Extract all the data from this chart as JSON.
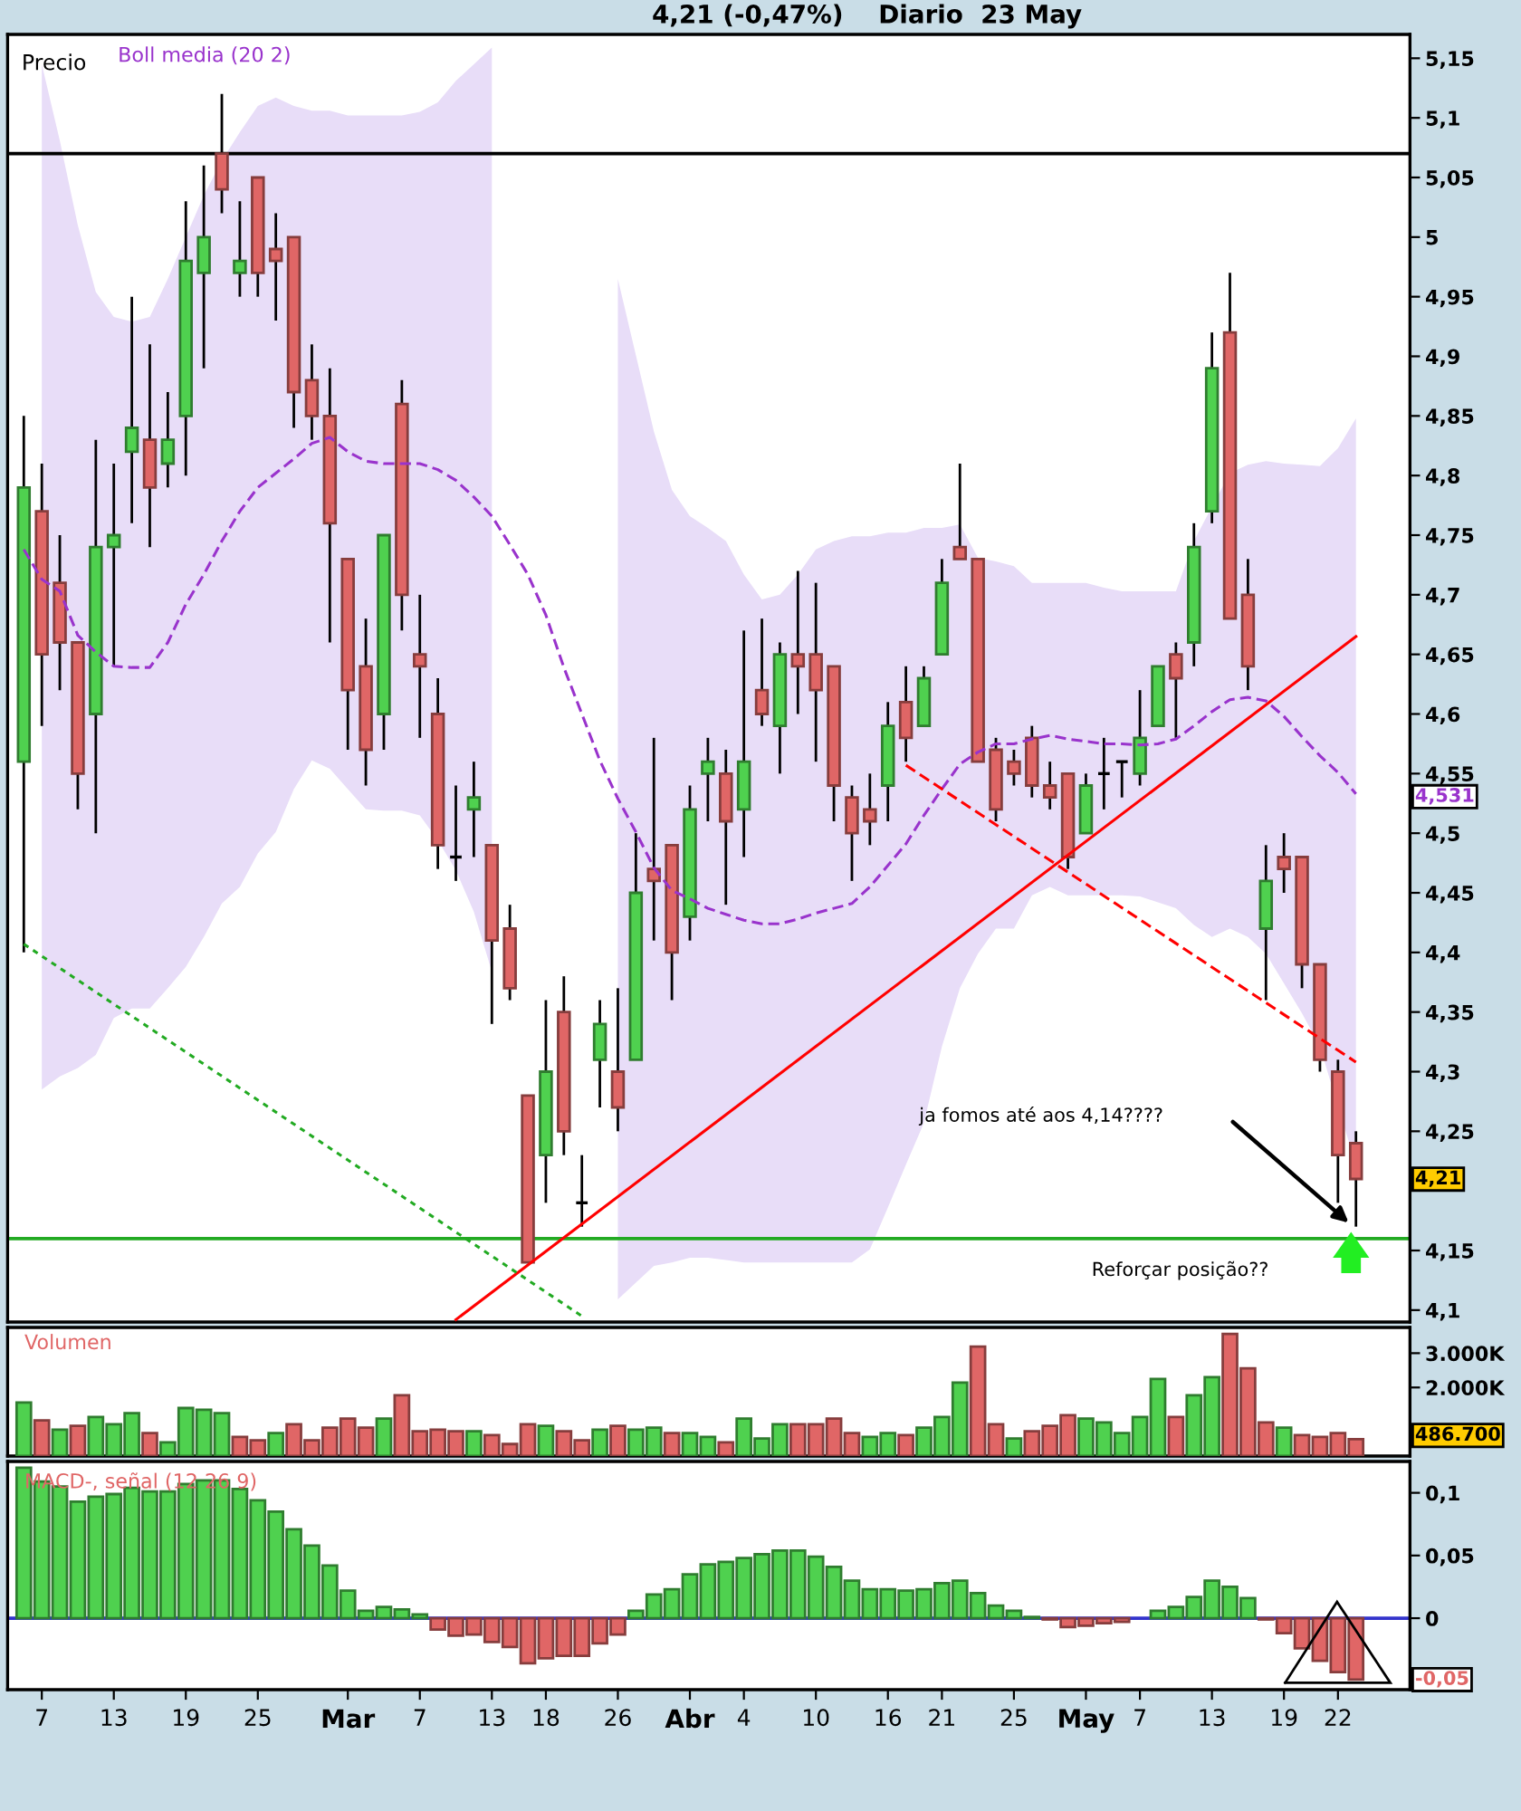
{
  "chart_data": [
    {
      "type": "candlestick",
      "title": "4,21 (-0,47%)    Diario  23 May",
      "categories": [
        null,
        null,
        null,
        null,
        null,
        null,
        null,
        null,
        null,
        null,
        null,
        null,
        null,
        null,
        null,
        null,
        null,
        null,
        null,
        null,
        null,
        null,
        null,
        null,
        null,
        null,
        null,
        null,
        null,
        null,
        null,
        null,
        null,
        null,
        null,
        null,
        null,
        null,
        null,
        null,
        null,
        null,
        null,
        null,
        null,
        null,
        null,
        null,
        null,
        null,
        null,
        null,
        null,
        null,
        null,
        null,
        null,
        null,
        null,
        null,
        null,
        null,
        null,
        null,
        null,
        null,
        null,
        null,
        null,
        null,
        null,
        null,
        null,
        null,
        null
      ],
      "series": [
        {
          "type": "candlestick",
          "color": "#000000",
          "ohlc": [
            [
              4.56,
              4.85,
              4.4,
              4.79
            ],
            [
              4.77,
              4.81,
              4.59,
              4.65
            ],
            [
              4.71,
              4.75,
              4.62,
              4.66
            ],
            [
              4.66,
              4.66,
              4.52,
              4.55
            ],
            [
              4.6,
              4.83,
              4.5,
              4.74
            ],
            [
              4.74,
              4.81,
              4.64,
              4.75
            ],
            [
              4.82,
              4.95,
              4.76,
              4.84
            ],
            [
              4.83,
              4.91,
              4.74,
              4.79
            ],
            [
              4.81,
              4.87,
              4.79,
              4.83
            ],
            [
              4.85,
              5.03,
              4.8,
              4.98
            ],
            [
              4.97,
              5.06,
              4.89,
              5.0
            ],
            [
              5.07,
              5.12,
              5.02,
              5.04
            ],
            [
              4.97,
              5.03,
              4.95,
              4.98
            ],
            [
              5.05,
              5.05,
              4.95,
              4.97
            ],
            [
              4.99,
              5.02,
              4.93,
              4.98
            ],
            [
              5.0,
              5.0,
              4.84,
              4.87
            ],
            [
              4.88,
              4.91,
              4.83,
              4.85
            ],
            [
              4.85,
              4.89,
              4.66,
              4.76
            ],
            [
              4.73,
              4.73,
              4.57,
              4.62
            ],
            [
              4.64,
              4.68,
              4.54,
              4.57
            ],
            [
              4.6,
              4.75,
              4.57,
              4.75
            ],
            [
              4.86,
              4.88,
              4.67,
              4.7
            ],
            [
              4.65,
              4.7,
              4.58,
              4.64
            ],
            [
              4.6,
              4.63,
              4.47,
              4.49
            ],
            [
              4.48,
              4.54,
              4.46,
              4.48
            ],
            [
              4.52,
              4.56,
              4.48,
              4.53
            ],
            [
              4.49,
              4.49,
              4.34,
              4.41
            ],
            [
              4.42,
              4.44,
              4.36,
              4.37
            ],
            [
              4.28,
              4.28,
              4.14,
              4.14
            ],
            [
              4.23,
              4.36,
              4.19,
              4.3
            ],
            [
              4.35,
              4.38,
              4.23,
              4.25
            ],
            [
              4.19,
              4.23,
              4.17,
              4.19
            ],
            [
              4.31,
              4.36,
              4.27,
              4.34
            ],
            [
              4.3,
              4.37,
              4.25,
              4.27
            ],
            [
              4.31,
              4.5,
              4.31,
              4.45
            ],
            [
              4.47,
              4.58,
              4.41,
              4.46
            ],
            [
              4.49,
              4.49,
              4.36,
              4.4
            ],
            [
              4.43,
              4.54,
              4.41,
              4.52
            ],
            [
              4.55,
              4.58,
              4.51,
              4.56
            ],
            [
              4.55,
              4.57,
              4.44,
              4.51
            ],
            [
              4.52,
              4.67,
              4.48,
              4.56
            ],
            [
              4.62,
              4.68,
              4.59,
              4.6
            ],
            [
              4.59,
              4.66,
              4.55,
              4.65
            ],
            [
              4.65,
              4.72,
              4.6,
              4.64
            ],
            [
              4.65,
              4.71,
              4.56,
              4.62
            ],
            [
              4.64,
              4.64,
              4.51,
              4.54
            ],
            [
              4.53,
              4.54,
              4.46,
              4.5
            ],
            [
              4.52,
              4.55,
              4.49,
              4.51
            ],
            [
              4.54,
              4.61,
              4.51,
              4.59
            ],
            [
              4.61,
              4.64,
              4.56,
              4.58
            ],
            [
              4.59,
              4.64,
              4.59,
              4.63
            ],
            [
              4.65,
              4.73,
              4.65,
              4.71
            ],
            [
              4.74,
              4.81,
              4.73,
              4.73
            ],
            [
              4.73,
              4.73,
              4.56,
              4.56
            ],
            [
              4.57,
              4.58,
              4.51,
              4.52
            ],
            [
              4.56,
              4.57,
              4.54,
              4.55
            ],
            [
              4.58,
              4.59,
              4.53,
              4.54
            ],
            [
              4.54,
              4.56,
              4.52,
              4.53
            ],
            [
              4.55,
              4.55,
              4.47,
              4.48
            ],
            [
              4.5,
              4.55,
              4.5,
              4.54
            ],
            [
              4.55,
              4.58,
              4.52,
              4.55
            ],
            [
              4.56,
              4.56,
              4.53,
              4.56
            ],
            [
              4.55,
              4.62,
              4.54,
              4.58
            ],
            [
              4.59,
              4.64,
              4.59,
              4.64
            ],
            [
              4.65,
              4.66,
              4.58,
              4.63
            ],
            [
              4.66,
              4.76,
              4.64,
              4.74
            ],
            [
              4.77,
              4.92,
              4.76,
              4.89
            ],
            [
              4.92,
              4.97,
              4.68,
              4.68
            ],
            [
              4.7,
              4.73,
              4.62,
              4.64
            ],
            [
              4.42,
              4.49,
              4.36,
              4.46
            ],
            [
              4.48,
              4.5,
              4.45,
              4.47
            ],
            [
              4.48,
              4.48,
              4.37,
              4.39
            ],
            [
              4.39,
              4.39,
              4.3,
              4.31
            ],
            [
              4.3,
              4.31,
              4.19,
              4.23
            ],
            [
              4.24,
              4.25,
              4.17,
              4.21
            ]
          ],
          "colors": [
            "#4fd14f",
            "#e06666",
            "#e06666",
            "#e06666",
            "#4fd14f",
            "#4fd14f",
            "#4fd14f",
            "#e06666",
            "#4fd14f",
            "#4fd14f",
            "#4fd14f",
            "#e06666",
            "#4fd14f",
            "#e06666",
            "#e06666",
            "#e06666",
            "#e06666",
            "#e06666",
            "#e06666",
            "#e06666",
            "#4fd14f",
            "#e06666",
            "#e06666",
            "#e06666",
            "#000000",
            "#4fd14f",
            "#e06666",
            "#e06666",
            "#e06666",
            "#4fd14f",
            "#e06666",
            "#000000",
            "#4fd14f",
            "#e06666",
            "#4fd14f",
            "#e06666",
            "#e06666",
            "#4fd14f",
            "#4fd14f",
            "#e06666",
            "#4fd14f",
            "#e06666",
            "#4fd14f",
            "#e06666",
            "#e06666",
            "#e06666",
            "#e06666",
            "#e06666",
            "#4fd14f",
            "#e06666",
            "#4fd14f",
            "#4fd14f",
            "#e06666",
            "#e06666",
            "#e06666",
            "#e06666",
            "#e06666",
            "#e06666",
            "#e06666",
            "#4fd14f",
            "#000000",
            "#000000",
            "#4fd14f",
            "#4fd14f",
            "#e06666",
            "#4fd14f",
            "#4fd14f",
            "#e06666",
            "#e06666",
            "#4fd14f",
            "#e06666",
            "#e06666",
            "#e06666",
            "#e06666",
            "#e06666"
          ]
        },
        {
          "type": "line",
          "name": "Boll media (20 2)",
          "color": "#9933cc",
          "line_style": "dashed",
          "values": [
            4.738,
            4.713,
            4.703,
            4.666,
            4.652,
            4.64,
            4.639,
            4.639,
            4.66,
            4.692,
            4.717,
            4.745,
            4.77,
            4.79,
            4.802,
            4.814,
            4.827,
            4.832,
            4.82,
            4.812,
            4.81,
            4.81,
            4.81,
            4.805,
            4.796,
            4.782,
            4.766,
            4.742,
            4.717,
            4.683,
            4.639,
            4.6,
            4.561,
            4.529,
            4.501,
            4.471,
            4.452,
            4.445,
            4.437,
            4.432,
            4.427,
            4.424,
            4.424,
            4.428,
            4.433,
            4.437,
            4.441,
            4.455,
            4.473,
            4.491,
            4.515,
            4.537,
            4.558,
            4.568,
            4.575,
            4.575,
            4.579,
            4.582,
            4.579,
            4.577,
            4.575,
            4.575,
            4.574,
            4.575,
            4.579,
            4.59,
            4.602,
            4.612,
            4.614,
            4.611,
            4.598,
            4.581,
            4.565,
            4.551,
            4.533
          ],
          "lower": [
            null,
            4.285,
            4.296,
            4.303,
            4.314,
            4.345,
            4.353,
            4.353,
            4.37,
            4.388,
            4.413,
            4.441,
            4.455,
            4.483,
            4.501,
            4.537,
            4.561,
            4.554,
            4.537,
            4.52,
            4.519,
            4.519,
            4.515,
            4.494,
            4.469,
            4.434,
            4.384,
            null,
            null,
            null,
            null,
            null,
            null,
            4.109,
            4.123,
            4.137,
            4.14,
            4.144,
            4.144,
            4.142,
            4.14,
            4.14,
            4.14,
            4.14,
            4.14,
            4.14,
            4.14,
            4.151,
            4.186,
            4.222,
            4.257,
            4.321,
            4.37,
            4.399,
            4.42,
            4.42,
            4.448,
            4.455,
            4.448,
            4.448,
            4.448,
            4.448,
            4.447,
            4.442,
            4.437,
            4.423,
            4.413,
            4.42,
            4.413,
            4.399,
            4.374,
            4.349,
            4.321,
            4.271,
            4.222
          ],
          "upper": [
            null,
            5.145,
            5.081,
            5.01,
            4.954,
            4.933,
            4.929,
            4.933,
            4.965,
            5.0,
            5.035,
            5.064,
            5.088,
            5.11,
            5.117,
            5.11,
            5.106,
            5.106,
            5.102,
            5.102,
            5.102,
            5.102,
            5.105,
            5.113,
            5.131,
            5.145,
            5.159,
            null,
            null,
            null,
            null,
            null,
            null,
            4.965,
            4.901,
            4.837,
            4.788,
            4.766,
            4.756,
            4.745,
            4.717,
            4.696,
            4.7,
            4.717,
            4.738,
            4.745,
            4.749,
            4.749,
            4.752,
            4.752,
            4.756,
            4.756,
            4.759,
            4.731,
            4.728,
            4.724,
            4.71,
            4.71,
            4.71,
            4.71,
            4.706,
            4.703,
            4.703,
            4.703,
            4.703,
            4.745,
            4.774,
            4.802,
            4.809,
            4.812,
            4.81,
            4.809,
            4.808,
            4.823,
            4.848
          ]
        },
        {
          "type": "line",
          "color": "#ff0000",
          "line_style": "solid",
          "values": [
            null,
            null,
            null,
            null,
            null,
            null,
            null,
            null,
            null,
            null,
            null,
            null,
            null,
            null,
            null,
            null,
            null,
            null,
            null,
            null,
            null,
            null,
            null,
            null,
            4.092,
            null,
            null,
            null,
            null,
            null,
            null,
            null,
            null,
            null,
            null,
            null,
            null,
            null,
            null,
            null,
            null,
            null,
            null,
            null,
            null,
            null,
            null,
            null,
            null,
            null,
            null,
            null,
            null,
            null,
            null,
            null,
            null,
            null,
            null,
            null,
            null,
            null,
            null,
            null,
            null,
            null,
            null,
            null,
            null,
            null,
            null,
            null,
            null,
            null,
            4.665
          ]
        },
        {
          "type": "line",
          "color": "#ff0000",
          "line_style": "dashed",
          "values": [
            null,
            null,
            null,
            null,
            null,
            null,
            null,
            null,
            null,
            null,
            null,
            null,
            null,
            null,
            null,
            null,
            null,
            null,
            null,
            null,
            null,
            null,
            null,
            null,
            null,
            null,
            null,
            null,
            null,
            null,
            null,
            null,
            null,
            null,
            null,
            null,
            null,
            null,
            null,
            null,
            null,
            null,
            null,
            null,
            null,
            null,
            null,
            null,
            null,
            4.557,
            null,
            null,
            null,
            null,
            null,
            null,
            null,
            null,
            null,
            null,
            null,
            null,
            null,
            null,
            null,
            null,
            null,
            null,
            null,
            null,
            null,
            null,
            null,
            null,
            4.308
          ]
        },
        {
          "type": "line",
          "color": "#22aa22",
          "line_style": "dotted",
          "values": [
            4.407,
            null,
            null,
            null,
            null,
            null,
            null,
            null,
            null,
            null,
            null,
            null,
            null,
            null,
            null,
            null,
            null,
            null,
            null,
            null,
            null,
            null,
            null,
            null,
            null,
            null,
            null,
            null,
            null,
            null,
            null,
            4.095,
            null,
            null,
            null,
            null,
            null,
            null,
            null,
            null,
            null,
            null,
            null,
            null,
            null,
            null,
            null,
            null,
            null,
            null,
            null,
            null,
            null,
            null,
            null,
            null,
            null,
            null,
            null,
            null,
            null,
            null,
            null,
            null,
            null,
            null,
            null,
            null,
            null,
            null,
            null,
            null,
            null,
            null,
            null
          ]
        }
      ],
      "ylim": [
        4.09,
        5.17
      ],
      "yticks": [
        {
          "value": 4.1,
          "label": "4,1"
        },
        {
          "value": 4.15,
          "label": "4,15"
        },
        {
          "value": 4.25,
          "label": "4,25"
        },
        {
          "value": 4.3,
          "label": "4,3"
        },
        {
          "value": 4.35,
          "label": "4,35"
        },
        {
          "value": 4.4,
          "label": "4,4"
        },
        {
          "value": 4.45,
          "label": "4,45"
        },
        {
          "value": 4.5,
          "label": "4,5"
        },
        {
          "value": 4.55,
          "label": "4,55"
        },
        {
          "value": 4.6,
          "label": "4,6"
        },
        {
          "value": 4.65,
          "label": "4,65"
        },
        {
          "value": 4.7,
          "label": "4,7"
        },
        {
          "value": 4.75,
          "label": "4,75"
        },
        {
          "value": 4.8,
          "label": "4,8"
        },
        {
          "value": 4.85,
          "label": "4,85"
        },
        {
          "value": 4.9,
          "label": "4,9"
        },
        {
          "value": 4.95,
          "label": "4,95"
        },
        5,
        {
          "value": 5.05,
          "label": "5,05"
        },
        {
          "value": 5.1,
          "label": "5,1"
        },
        {
          "value": 5.15,
          "label": "5,15"
        }
      ],
      "ref_lines": [
        {
          "axis": "y",
          "value": 5.07,
          "color": "#000000"
        },
        {
          "axis": "y",
          "value": 4.16,
          "color": "#22aa22"
        }
      ],
      "annotations": [
        "Precio",
        "4,531",
        "4,21",
        "ja fomos até aos 4,14????",
        "Reforçar posição??"
      ],
      "legend": "top left"
    },
    {
      "type": "bar",
      "title": "Volumen",
      "categories": [
        null,
        null,
        null,
        null,
        null,
        null,
        null,
        null,
        null,
        null,
        null,
        null,
        null,
        null,
        null,
        null,
        null,
        null,
        null,
        null,
        null,
        null,
        null,
        null,
        null,
        null,
        null,
        null,
        null,
        null,
        null,
        null,
        null,
        null,
        null,
        null,
        null,
        null,
        null,
        null,
        null,
        null,
        null,
        null,
        null,
        null,
        null,
        null,
        null,
        null,
        null,
        null,
        null,
        null,
        null,
        null,
        null,
        null,
        null,
        null,
        null,
        null,
        null,
        null,
        null,
        null,
        null,
        null,
        null,
        null,
        null,
        null,
        null,
        null,
        null
      ],
      "values": [
        1560,
        1040,
        770,
        880,
        1140,
        930,
        1250,
        670,
        400,
        1400,
        1350,
        1250,
        560,
        460,
        670,
        930,
        460,
        830,
        1090,
        830,
        1090,
        1770,
        720,
        770,
        720,
        720,
        610,
        350,
        930,
        880,
        720,
        460,
        770,
        880,
        770,
        830,
        670,
        670,
        560,
        400,
        1090,
        510,
        930,
        930,
        930,
        1090,
        670,
        560,
        670,
        610,
        830,
        1140,
        2140,
        3190,
        930,
        510,
        720,
        880,
        1190,
        1090,
        980,
        670,
        1140,
        2250,
        1140,
        1770,
        2300,
        3560,
        2560,
        980,
        830,
        610,
        560,
        670,
        490
      ],
      "colors": [
        "#4fd14f",
        "#e06666",
        "#4fd14f",
        "#e06666",
        "#4fd14f",
        "#4fd14f",
        "#4fd14f",
        "#e06666",
        "#4fd14f",
        "#4fd14f",
        "#4fd14f",
        "#4fd14f",
        "#e06666",
        "#e06666",
        "#4fd14f",
        "#e06666",
        "#e06666",
        "#e06666",
        "#e06666",
        "#e06666",
        "#4fd14f",
        "#e06666",
        "#e06666",
        "#e06666",
        "#e06666",
        "#4fd14f",
        "#e06666",
        "#e06666",
        "#e06666",
        "#4fd14f",
        "#e06666",
        "#e06666",
        "#4fd14f",
        "#e06666",
        "#4fd14f",
        "#4fd14f",
        "#e06666",
        "#4fd14f",
        "#4fd14f",
        "#e06666",
        "#4fd14f",
        "#4fd14f",
        "#4fd14f",
        "#e06666",
        "#e06666",
        "#e06666",
        "#e06666",
        "#4fd14f",
        "#4fd14f",
        "#e06666",
        "#4fd14f",
        "#4fd14f",
        "#4fd14f",
        "#e06666",
        "#e06666",
        "#4fd14f",
        "#e06666",
        "#e06666",
        "#e06666",
        "#4fd14f",
        "#4fd14f",
        "#4fd14f",
        "#4fd14f",
        "#4fd14f",
        "#e06666",
        "#4fd14f",
        "#4fd14f",
        "#e06666",
        "#e06666",
        "#e06666",
        "#4fd14f",
        "#e06666",
        "#e06666",
        "#e06666",
        "#e06666"
      ],
      "ylim": [
        0,
        3750
      ],
      "yticks": [
        {
          "value": 2000,
          "label": "2.000K"
        },
        {
          "value": 3000,
          "label": "3.000K"
        }
      ],
      "annotations": [
        "486.700"
      ]
    },
    {
      "type": "bar",
      "title": "MACD-, señal (12 26 9)",
      "categories": [
        null,
        "7",
        null,
        null,
        null,
        "13",
        null,
        null,
        null,
        "19",
        null,
        null,
        null,
        "25",
        null,
        null,
        null,
        null,
        "Mar",
        null,
        null,
        null,
        "7",
        null,
        null,
        null,
        "13",
        null,
        null,
        "18",
        null,
        null,
        null,
        "26",
        null,
        null,
        null,
        "Abr",
        null,
        null,
        "4",
        null,
        null,
        null,
        "10",
        null,
        null,
        null,
        "16",
        null,
        null,
        "21",
        null,
        null,
        null,
        "25",
        null,
        null,
        null,
        "May",
        null,
        null,
        "7",
        null,
        null,
        null,
        "13",
        null,
        null,
        null,
        "19",
        null,
        null,
        "22",
        null
      ],
      "values": [
        0.12,
        0.109,
        0.105,
        0.093,
        0.097,
        0.099,
        0.104,
        0.101,
        0.101,
        0.107,
        0.11,
        0.11,
        0.103,
        0.094,
        0.085,
        0.071,
        0.058,
        0.042,
        0.022,
        0.006,
        0.009,
        0.007,
        0.003,
        -0.009,
        -0.014,
        -0.013,
        -0.019,
        -0.023,
        -0.036,
        -0.032,
        -0.03,
        -0.03,
        -0.02,
        -0.013,
        0.006,
        0.019,
        0.023,
        0.035,
        0.043,
        0.045,
        0.048,
        0.051,
        0.054,
        0.054,
        0.049,
        0.041,
        0.03,
        0.023,
        0.023,
        0.022,
        0.023,
        0.028,
        0.03,
        0.02,
        0.01,
        0.006,
        0.001,
        -0.001,
        -0.007,
        -0.006,
        -0.004,
        -0.003,
        null,
        0.006,
        0.009,
        0.017,
        0.03,
        0.025,
        0.016,
        -0.001,
        -0.012,
        -0.024,
        -0.034,
        -0.043,
        -0.049
      ],
      "colors": [
        "#4fd14f",
        "#4fd14f",
        "#4fd14f",
        "#4fd14f",
        "#4fd14f",
        "#4fd14f",
        "#4fd14f",
        "#4fd14f",
        "#4fd14f",
        "#4fd14f",
        "#4fd14f",
        "#4fd14f",
        "#4fd14f",
        "#4fd14f",
        "#4fd14f",
        "#4fd14f",
        "#4fd14f",
        "#4fd14f",
        "#4fd14f",
        "#4fd14f",
        "#4fd14f",
        "#4fd14f",
        "#4fd14f",
        "#e06666",
        "#e06666",
        "#e06666",
        "#e06666",
        "#e06666",
        "#e06666",
        "#e06666",
        "#e06666",
        "#e06666",
        "#e06666",
        "#e06666",
        "#4fd14f",
        "#4fd14f",
        "#4fd14f",
        "#4fd14f",
        "#4fd14f",
        "#4fd14f",
        "#4fd14f",
        "#4fd14f",
        "#4fd14f",
        "#4fd14f",
        "#4fd14f",
        "#4fd14f",
        "#4fd14f",
        "#4fd14f",
        "#4fd14f",
        "#4fd14f",
        "#4fd14f",
        "#4fd14f",
        "#4fd14f",
        "#4fd14f",
        "#4fd14f",
        "#4fd14f",
        "#4fd14f",
        "#e06666",
        "#e06666",
        "#e06666",
        "#e06666",
        "#e06666",
        "#4fd14f",
        "#4fd14f",
        "#4fd14f",
        "#4fd14f",
        "#4fd14f",
        "#4fd14f",
        "#4fd14f",
        "#e06666",
        "#e06666",
        "#e06666",
        "#e06666",
        "#e06666",
        "#e06666"
      ],
      "ylim": [
        -0.057,
        0.125
      ],
      "yticks": [
        0,
        {
          "value": 0.05,
          "label": "0,05"
        },
        {
          "value": 0.1,
          "label": "0,1"
        }
      ],
      "ref_lines": [
        {
          "axis": "y",
          "value": 0,
          "color": "#3333cc"
        }
      ],
      "annotations": [
        "-0,05"
      ]
    }
  ]
}
